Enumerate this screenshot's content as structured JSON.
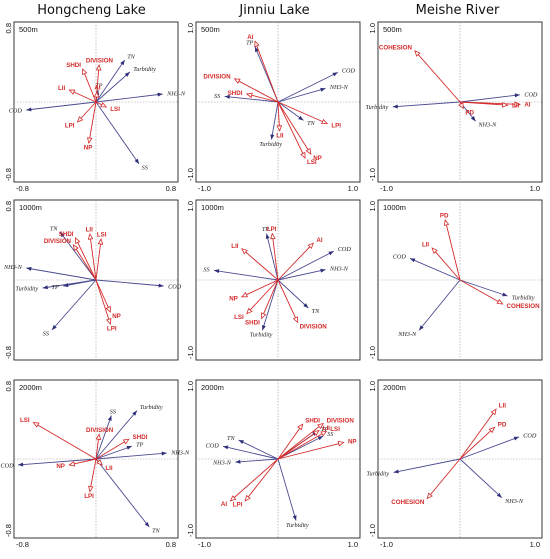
{
  "column_titles": [
    "Hongcheng Lake",
    "Jinniu Lake",
    "Meishe River"
  ],
  "chart_data": [
    {
      "type": "scatter",
      "site": "Hongcheng Lake",
      "scale": "500m",
      "xlim": [
        -0.8,
        0.8
      ],
      "ylim": [
        -0.8,
        0.8
      ],
      "xticks": [
        "-0.8",
        "0.8"
      ],
      "yticks": [
        "0.8",
        "-0.8"
      ],
      "env": [
        {
          "name": "TN",
          "x": 0.28,
          "y": 0.42
        },
        {
          "name": "Turbidity",
          "x": 0.33,
          "y": 0.3
        },
        {
          "name": "NH3-N",
          "x": 0.65,
          "y": 0.08
        },
        {
          "name": "COD",
          "x": -0.68,
          "y": -0.08
        },
        {
          "name": "TP",
          "x": 0.02,
          "y": 0.12
        },
        {
          "name": "SS",
          "x": 0.42,
          "y": -0.62
        }
      ],
      "species": [
        {
          "name": "SHDI",
          "x": -0.13,
          "y": 0.33
        },
        {
          "name": "DIVISION",
          "x": 0.03,
          "y": 0.37
        },
        {
          "name": "LII",
          "x": -0.26,
          "y": 0.12
        },
        {
          "name": "AI",
          "x": 0.01,
          "y": 0.1
        },
        {
          "name": "LSI",
          "x": 0.1,
          "y": -0.05
        },
        {
          "name": "LPI",
          "x": -0.18,
          "y": -0.2
        },
        {
          "name": "NP",
          "x": -0.07,
          "y": -0.41
        }
      ]
    },
    {
      "type": "scatter",
      "site": "Jinniu Lake",
      "scale": "500m",
      "xlim": [
        -1.0,
        1.0
      ],
      "ylim": [
        -1.0,
        1.0
      ],
      "xticks": [
        "-1.0",
        "1.0"
      ],
      "yticks": [
        "1.0",
        "-1.0"
      ],
      "env": [
        {
          "name": "TP",
          "x": -0.28,
          "y": 0.69
        },
        {
          "name": "COD",
          "x": 0.73,
          "y": 0.37
        },
        {
          "name": "NH3-N",
          "x": 0.58,
          "y": 0.17
        },
        {
          "name": "SS",
          "x": -0.65,
          "y": 0.07
        },
        {
          "name": "TN",
          "x": 0.31,
          "y": -0.23
        },
        {
          "name": "Turbidity",
          "x": -0.08,
          "y": -0.47
        }
      ],
      "species": [
        {
          "name": "AI",
          "x": -0.28,
          "y": 0.76
        },
        {
          "name": "DIVISION",
          "x": -0.53,
          "y": 0.29
        },
        {
          "name": "SHDI",
          "x": -0.38,
          "y": 0.1
        },
        {
          "name": "LII",
          "x": 0.02,
          "y": -0.36
        },
        {
          "name": "LPI",
          "x": 0.6,
          "y": -0.27
        },
        {
          "name": "NP",
          "x": 0.4,
          "y": -0.65
        },
        {
          "name": "LSI",
          "x": 0.33,
          "y": -0.7
        }
      ]
    },
    {
      "type": "scatter",
      "site": "Meishe River",
      "scale": "500m",
      "xlim": [
        -1.0,
        1.0
      ],
      "ylim": [
        -1.0,
        1.0
      ],
      "xticks": [
        "-1.0",
        "1.0"
      ],
      "yticks": [
        "1.0",
        "-1.0"
      ],
      "env": [
        {
          "name": "COD",
          "x": 0.73,
          "y": 0.09
        },
        {
          "name": "Turbidity",
          "x": -0.82,
          "y": -0.06
        },
        {
          "name": "NH3-N",
          "x": 0.19,
          "y": -0.24
        }
      ],
      "species": [
        {
          "name": "COHESION",
          "x": -0.55,
          "y": 0.64
        },
        {
          "name": "AI",
          "x": 0.73,
          "y": -0.03
        },
        {
          "name": "LII",
          "x": 0.58,
          "y": -0.04
        },
        {
          "name": "PD",
          "x": 0.04,
          "y": -0.08
        }
      ]
    },
    {
      "type": "scatter",
      "site": "Hongcheng Lake",
      "scale": "1000m",
      "xlim": [
        -0.8,
        0.8
      ],
      "ylim": [
        -0.8,
        0.8
      ],
      "xticks": [],
      "yticks": [
        "0.8",
        "-0.8"
      ],
      "env": [
        {
          "name": "TN",
          "x": -0.35,
          "y": 0.48
        },
        {
          "name": "NH3-N",
          "x": -0.68,
          "y": 0.12
        },
        {
          "name": "COD",
          "x": 0.66,
          "y": -0.06
        },
        {
          "name": "Turbidity",
          "x": -0.52,
          "y": -0.08
        },
        {
          "name": "TP",
          "x": -0.32,
          "y": -0.06
        },
        {
          "name": "SS",
          "x": -0.43,
          "y": -0.5
        }
      ],
      "species": [
        {
          "name": "SHDI",
          "x": -0.2,
          "y": 0.42
        },
        {
          "name": "LII",
          "x": -0.06,
          "y": 0.46
        },
        {
          "name": "DIVISION",
          "x": -0.22,
          "y": 0.35
        },
        {
          "name": "LSI",
          "x": 0.05,
          "y": 0.41
        },
        {
          "name": "NP",
          "x": 0.14,
          "y": -0.32
        },
        {
          "name": "LPI",
          "x": 0.14,
          "y": -0.44
        }
      ]
    },
    {
      "type": "scatter",
      "site": "Jinniu Lake",
      "scale": "1000m",
      "xlim": [
        -1.0,
        1.0
      ],
      "ylim": [
        -1.0,
        1.0
      ],
      "xticks": [],
      "yticks": [
        "1.0",
        "-1.0"
      ],
      "env": [
        {
          "name": "TP",
          "x": -0.14,
          "y": 0.58
        },
        {
          "name": "COD",
          "x": 0.68,
          "y": 0.36
        },
        {
          "name": "NH3-N",
          "x": 0.58,
          "y": 0.13
        },
        {
          "name": "SS",
          "x": -0.78,
          "y": 0.12
        },
        {
          "name": "TN",
          "x": 0.37,
          "y": -0.35
        },
        {
          "name": "Turbidity",
          "x": -0.19,
          "y": -0.63
        }
      ],
      "species": [
        {
          "name": "LPI",
          "x": -0.07,
          "y": 0.58
        },
        {
          "name": "AI",
          "x": 0.43,
          "y": 0.46
        },
        {
          "name": "LII",
          "x": -0.44,
          "y": 0.39
        },
        {
          "name": "NP",
          "x": -0.44,
          "y": -0.21
        },
        {
          "name": "LSI",
          "x": -0.38,
          "y": -0.42
        },
        {
          "name": "SHDI",
          "x": -0.2,
          "y": -0.48
        },
        {
          "name": "DIVISION",
          "x": 0.24,
          "y": -0.53
        }
      ]
    },
    {
      "type": "scatter",
      "site": "Meishe River",
      "scale": "1000m",
      "xlim": [
        -1.0,
        1.0
      ],
      "ylim": [
        -1.0,
        1.0
      ],
      "xticks": [],
      "yticks": [
        "1.0",
        "-1.0"
      ],
      "env": [
        {
          "name": "COD",
          "x": -0.61,
          "y": 0.27
        },
        {
          "name": "Turbidity",
          "x": 0.58,
          "y": -0.2
        },
        {
          "name": "NH3-N",
          "x": -0.5,
          "y": -0.63
        }
      ],
      "species": [
        {
          "name": "PD",
          "x": -0.18,
          "y": 0.75
        },
        {
          "name": "LII",
          "x": -0.34,
          "y": 0.4
        },
        {
          "name": "COHESION",
          "x": 0.52,
          "y": -0.3
        }
      ]
    },
    {
      "type": "scatter",
      "site": "Hongcheng Lake",
      "scale": "2000m",
      "xlim": [
        -0.8,
        0.8
      ],
      "ylim": [
        -0.8,
        0.8
      ],
      "xticks": [
        "-0.8",
        "0.8"
      ],
      "yticks": [
        "0.8",
        "-0.8"
      ],
      "env": [
        {
          "name": "SS",
          "x": 0.15,
          "y": 0.44
        },
        {
          "name": "Turbidity",
          "x": 0.4,
          "y": 0.49
        },
        {
          "name": "TP",
          "x": 0.35,
          "y": 0.13
        },
        {
          "name": "NH3-N",
          "x": 0.69,
          "y": 0.06
        },
        {
          "name": "COD",
          "x": -0.76,
          "y": -0.06
        },
        {
          "name": "TN",
          "x": 0.52,
          "y": -0.69
        }
      ],
      "species": [
        {
          "name": "LSI",
          "x": -0.61,
          "y": 0.37
        },
        {
          "name": "DIVISION",
          "x": 0.03,
          "y": 0.25
        },
        {
          "name": "SHDI",
          "x": 0.32,
          "y": 0.2
        },
        {
          "name": "NP",
          "x": -0.26,
          "y": -0.06
        },
        {
          "name": "LII",
          "x": 0.06,
          "y": -0.06
        },
        {
          "name": "LPI",
          "x": -0.06,
          "y": -0.33
        }
      ]
    },
    {
      "type": "scatter",
      "site": "Jinniu Lake",
      "scale": "2000m",
      "xlim": [
        -1.0,
        1.0
      ],
      "ylim": [
        -1.0,
        1.0
      ],
      "xticks": [
        "-1.0",
        "1.0"
      ],
      "yticks": [
        "1.0",
        "-1.0"
      ],
      "env": [
        {
          "name": "TN",
          "x": -0.48,
          "y": 0.24
        },
        {
          "name": "COD",
          "x": -0.67,
          "y": 0.16
        },
        {
          "name": "NH3-N",
          "x": -0.52,
          "y": -0.04
        },
        {
          "name": "TP",
          "x": 0.48,
          "y": 0.35
        },
        {
          "name": "SS",
          "x": 0.55,
          "y": 0.29
        },
        {
          "name": "Turbidity",
          "x": 0.22,
          "y": -0.78
        }
      ],
      "species": [
        {
          "name": "SHDI",
          "x": 0.3,
          "y": 0.44
        },
        {
          "name": "DIVISION",
          "x": 0.55,
          "y": 0.45
        },
        {
          "name": "LII",
          "x": 0.5,
          "y": 0.36
        },
        {
          "name": "LSI",
          "x": 0.59,
          "y": 0.35
        },
        {
          "name": "NP",
          "x": 0.8,
          "y": 0.21
        },
        {
          "name": "AI",
          "x": -0.58,
          "y": -0.53
        },
        {
          "name": "LPI",
          "x": -0.4,
          "y": -0.53
        }
      ]
    },
    {
      "type": "scatter",
      "site": "Meishe River",
      "scale": "2000m",
      "xlim": [
        -1.0,
        1.0
      ],
      "ylim": [
        -1.0,
        1.0
      ],
      "xticks": [
        "-1.0",
        "1.0"
      ],
      "yticks": [
        "1.0",
        "-1.0"
      ],
      "env": [
        {
          "name": "COD",
          "x": 0.72,
          "y": 0.28
        },
        {
          "name": "Turbidity",
          "x": -0.81,
          "y": -0.17
        },
        {
          "name": "NH3-N",
          "x": 0.51,
          "y": -0.49
        }
      ],
      "species": [
        {
          "name": "LII",
          "x": 0.44,
          "y": 0.63
        },
        {
          "name": "PD",
          "x": 0.42,
          "y": 0.4
        },
        {
          "name": "COHESION",
          "x": -0.4,
          "y": -0.5
        }
      ]
    }
  ]
}
